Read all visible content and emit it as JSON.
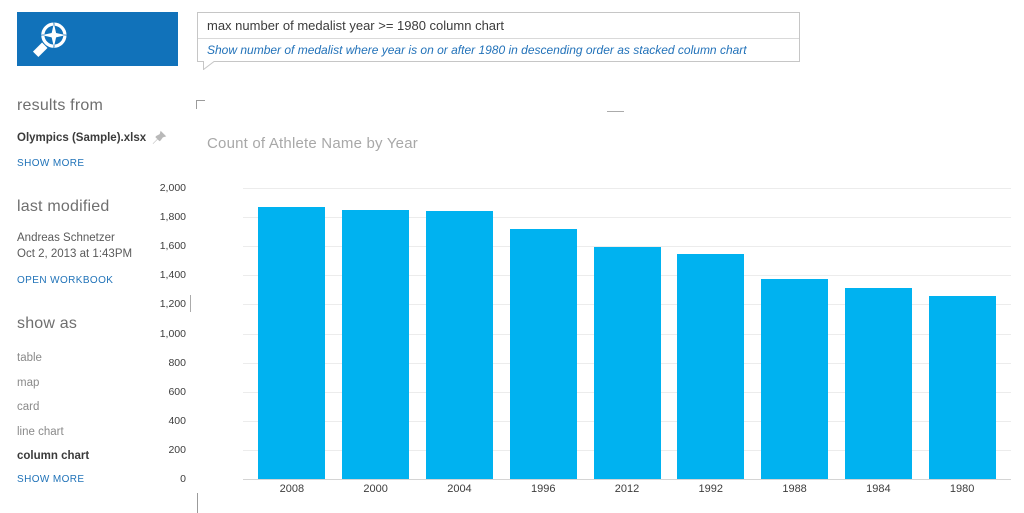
{
  "header": {
    "logo": {
      "bg_color": "#1172ba",
      "icon": "qa-compass-magnifier-icon"
    },
    "search": {
      "query": "max number of medalist year >= 1980 column chart",
      "restatement": "Show number of medalist where year is on or after 1980 in descending order as stacked column chart"
    }
  },
  "sidebar": {
    "results_from": {
      "heading": "results from",
      "source": "Olympics (Sample).xlsx",
      "pin_icon": "pushpin-icon",
      "show_more": "SHOW MORE"
    },
    "last_modified": {
      "heading": "last modified",
      "author": "Andreas Schnetzer",
      "date": "Oct 2, 2013 at 1:43PM",
      "open_workbook": "OPEN WORKBOOK"
    },
    "show_as": {
      "heading": "show as",
      "options": [
        {
          "label": "table",
          "selected": false
        },
        {
          "label": "map",
          "selected": false
        },
        {
          "label": "card",
          "selected": false
        },
        {
          "label": "line chart",
          "selected": false
        },
        {
          "label": "column chart",
          "selected": true
        }
      ],
      "show_more": "SHOW MORE"
    }
  },
  "chart_data": {
    "type": "bar",
    "title": "Count of Athlete Name by Year",
    "categories": [
      "2008",
      "2000",
      "2004",
      "1996",
      "2012",
      "1992",
      "1988",
      "1984",
      "1980"
    ],
    "values": [
      1870,
      1850,
      1840,
      1715,
      1595,
      1545,
      1375,
      1315,
      1255
    ],
    "xlabel": "",
    "ylabel": "",
    "ylim": [
      0,
      2000
    ],
    "y_tick_values": [
      2000,
      1800,
      1600,
      1400,
      1200,
      1000,
      800,
      600,
      400,
      200,
      0
    ],
    "y_tick_labels": [
      "2,000",
      "1,800",
      "1,600",
      "1,400",
      "1,200",
      "1,000",
      "800",
      "600",
      "400",
      "200",
      "0"
    ],
    "grid": true,
    "legend": "none",
    "bar_color": "#00b2f0",
    "sort": "descending"
  },
  "colors": {
    "logo_bg": "#1172ba",
    "bar": "#00b2f0",
    "link_blue": "#1f72b8",
    "restatement_blue": "#2272b9",
    "heading_gray": "#6f6f6f",
    "title_gray": "#a8a8a8"
  }
}
